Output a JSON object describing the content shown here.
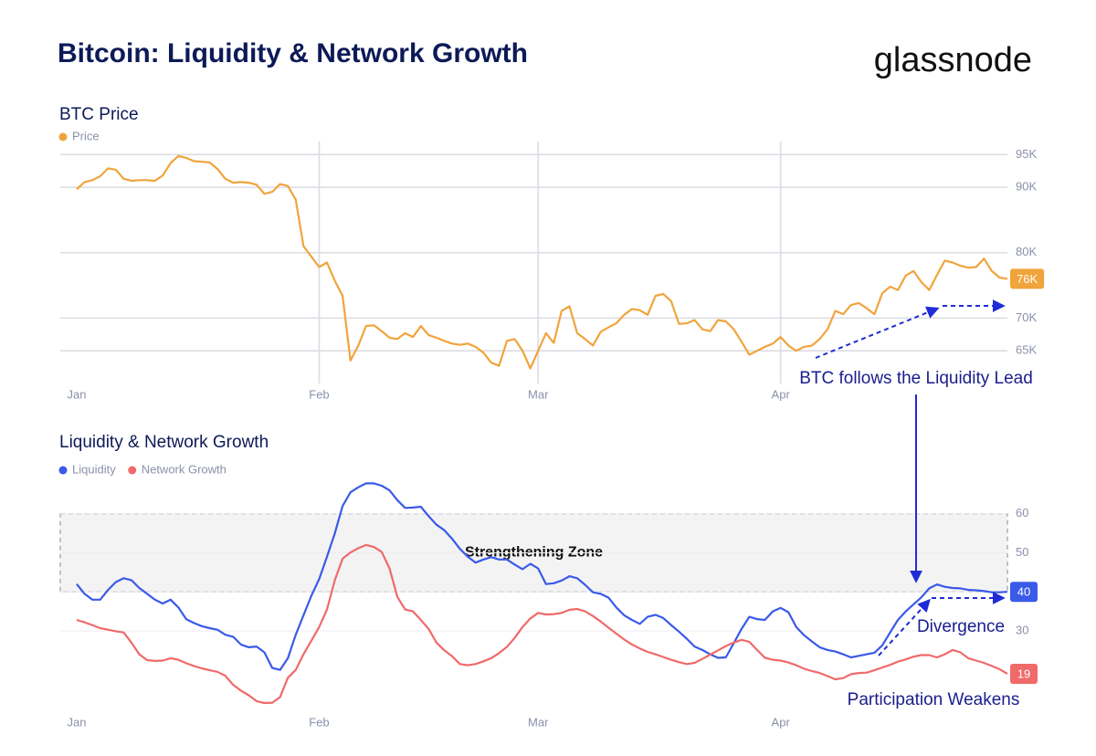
{
  "header": {
    "title": "Bitcoin: Liquidity & Network Growth",
    "brand": "glassnode"
  },
  "chart_data": [
    {
      "type": "line",
      "title": "BTC Price",
      "categories": [
        "Jan",
        null,
        null,
        null,
        null,
        null,
        null,
        null,
        null,
        null,
        null,
        null,
        null,
        null,
        null,
        null,
        null,
        null,
        null,
        null,
        null,
        null,
        null,
        null,
        null,
        null,
        null,
        null,
        null,
        null,
        null,
        "Feb",
        null,
        null,
        null,
        null,
        null,
        null,
        null,
        null,
        null,
        null,
        null,
        null,
        null,
        null,
        null,
        null,
        null,
        null,
        null,
        null,
        null,
        null,
        null,
        null,
        null,
        null,
        null,
        "Mar",
        null,
        null,
        null,
        null,
        null,
        null,
        null,
        null,
        null,
        null,
        null,
        null,
        null,
        null,
        null,
        null,
        null,
        null,
        null,
        null,
        null,
        null,
        null,
        null,
        null,
        null,
        null,
        null,
        null,
        null,
        "Apr",
        null,
        null,
        null,
        null,
        null,
        null,
        null,
        null,
        null,
        null,
        null,
        null,
        null,
        null,
        null,
        null,
        null,
        null,
        null,
        null,
        null,
        null,
        null,
        null,
        null,
        null,
        null,
        null,
        null
      ],
      "series": [
        {
          "name": "Price",
          "color": "#f0a43c",
          "values": [
            89700,
            90800,
            91100,
            91700,
            92900,
            92700,
            91300,
            91000,
            91100,
            91100,
            91000,
            91800,
            93700,
            94800,
            94500,
            94000,
            93900,
            93800,
            92800,
            91300,
            90700,
            90800,
            90700,
            90400,
            89000,
            89300,
            90500,
            90200,
            88100,
            81000,
            79400,
            77800,
            78500,
            75700,
            73400,
            63500,
            65800,
            68800,
            68900,
            68000,
            67000,
            66800,
            67700,
            67100,
            68800,
            67400,
            67000,
            66500,
            66100,
            65900,
            66100,
            65600,
            64700,
            63200,
            62700,
            66500,
            66800,
            65000,
            62300,
            65000,
            67700,
            66200,
            71100,
            71800,
            67700,
            66800,
            65800,
            67900,
            68600,
            69200,
            70500,
            71400,
            71200,
            70500,
            73400,
            73700,
            72600,
            69100,
            69200,
            69700,
            68300,
            68000,
            69700,
            69500,
            68300,
            66400,
            64400,
            65000,
            65600,
            66100,
            67100,
            65800,
            65000,
            65600,
            65800,
            66800,
            68300,
            71100,
            70600,
            72000,
            72300,
            71500,
            70600,
            73800,
            74800,
            74300,
            76500,
            77200,
            75500,
            74300,
            76600,
            78800,
            78500,
            78000,
            77700,
            77800,
            79100,
            77200,
            76200,
            76000
          ],
          "value_labels": [
            null,
            null,
            null,
            null,
            null,
            null,
            null,
            null,
            null,
            null,
            null,
            null,
            null,
            null,
            null,
            null,
            null,
            null,
            null,
            null,
            null,
            null,
            null,
            null,
            null,
            null,
            null,
            null,
            null,
            null,
            null,
            null,
            null,
            null,
            null,
            null,
            null,
            null,
            null,
            null,
            null,
            null,
            null,
            null,
            null,
            null,
            null,
            null,
            null,
            null,
            null,
            null,
            null,
            null,
            null,
            null,
            null,
            null,
            null,
            null,
            null,
            null,
            null,
            null,
            null,
            null,
            null,
            null,
            null,
            null,
            null,
            null,
            null,
            null,
            null,
            null,
            null,
            null,
            null,
            null,
            null,
            null,
            null,
            null,
            null,
            null,
            null,
            null,
            null,
            null,
            null,
            null,
            null,
            null,
            null,
            null,
            null,
            null,
            null,
            null,
            null,
            null,
            null,
            null,
            null,
            null,
            null,
            null,
            null,
            null,
            null,
            null,
            null,
            null,
            null,
            null,
            null,
            null,
            null,
            "76K"
          ]
        }
      ],
      "ylim": [
        60000,
        97000
      ],
      "yticks": [
        {
          "value": 65000,
          "label": "65K"
        },
        {
          "value": 70000,
          "label": "70K"
        },
        {
          "value": 80000,
          "label": "80K"
        },
        {
          "value": 90000,
          "label": "90K"
        },
        {
          "value": 95000,
          "label": "95K"
        }
      ],
      "grid": true,
      "x_grid": true,
      "annotations": [
        "BTC follows the Liquidity Lead"
      ]
    },
    {
      "type": "line",
      "title": "Liquidity & Network Growth",
      "categories": [
        "Jan",
        null,
        null,
        null,
        null,
        null,
        null,
        null,
        null,
        null,
        null,
        null,
        null,
        null,
        null,
        null,
        null,
        null,
        null,
        null,
        null,
        null,
        null,
        null,
        null,
        null,
        null,
        null,
        null,
        null,
        null,
        "Feb",
        null,
        null,
        null,
        null,
        null,
        null,
        null,
        null,
        null,
        null,
        null,
        null,
        null,
        null,
        null,
        null,
        null,
        null,
        null,
        null,
        null,
        null,
        null,
        null,
        null,
        null,
        null,
        "Mar",
        null,
        null,
        null,
        null,
        null,
        null,
        null,
        null,
        null,
        null,
        null,
        null,
        null,
        null,
        null,
        null,
        null,
        null,
        null,
        null,
        null,
        null,
        null,
        null,
        null,
        null,
        null,
        null,
        null,
        null,
        "Apr",
        null,
        null,
        null,
        null,
        null,
        null,
        null,
        null,
        null,
        null,
        null,
        null,
        null,
        null,
        null,
        null,
        null,
        null,
        null,
        null,
        null,
        null,
        null,
        null,
        null,
        null,
        null,
        null,
        null
      ],
      "series": [
        {
          "name": "Liquidity",
          "color": "#3a5ae8",
          "values": [
            42,
            39.5,
            38,
            38,
            40.5,
            42.5,
            43.5,
            43,
            41,
            39.5,
            38,
            37,
            38,
            36,
            33,
            32,
            31.2,
            30.7,
            30.3,
            29,
            28.5,
            26.5,
            25.8,
            26,
            24.5,
            20.5,
            20,
            23,
            29,
            34,
            39,
            43.3,
            49,
            55,
            62,
            65.5,
            66.8,
            67.8,
            67.8,
            67.2,
            66,
            63.5,
            61.5,
            61.6,
            61.8,
            59.4,
            57.2,
            55.8,
            53.6,
            51,
            49,
            47.5,
            48.3,
            48.9,
            48.3,
            48.3,
            47,
            45.8,
            47.2,
            46,
            42,
            42.2,
            42.9,
            44,
            43.5,
            41.8,
            39.9,
            39.5,
            38.5,
            36,
            34,
            32.8,
            31.8,
            33.6,
            34.1,
            33.3,
            31.5,
            29.8,
            28,
            26,
            25.1,
            24,
            23.1,
            23.2,
            26.8,
            30.5,
            33.6,
            33,
            32.8,
            35,
            35.9,
            34.8,
            31,
            28.9,
            27.3,
            25.8,
            25.1,
            24.7,
            24,
            23.2,
            23.6,
            24,
            24.4,
            26.3,
            29.6,
            32.8,
            35,
            36.8,
            38.6,
            40.9,
            41.9,
            41.3,
            41,
            40.9,
            40.5,
            40.4,
            40.2,
            39.9,
            39.9,
            40
          ]
        },
        {
          "name": "Network Growth",
          "color": "#f06a6a",
          "values": [
            32.8,
            32.2,
            31.5,
            30.7,
            30.3,
            29.9,
            29.6,
            27,
            24,
            22.5,
            22.3,
            22.4,
            23,
            22.6,
            21.7,
            21,
            20.4,
            19.9,
            19.5,
            18.5,
            16.2,
            14.7,
            13.5,
            12,
            11.5,
            11.6,
            13,
            18,
            20,
            24,
            27.5,
            31,
            35.5,
            43,
            48.5,
            50.1,
            51.2,
            52,
            51.5,
            50.2,
            46,
            38.7,
            35.5,
            35,
            32.8,
            30.5,
            27,
            25,
            23.5,
            21.5,
            21.2,
            21.5,
            22.2,
            23,
            24.3,
            25.9,
            28.2,
            31,
            33.2,
            34.6,
            34.2,
            34.3,
            34.6,
            35.4,
            35.6,
            35,
            33.8,
            32.4,
            30.8,
            29.3,
            27.8,
            26.5,
            25.5,
            24.6,
            24,
            23.3,
            22.6,
            22,
            21.5,
            21.8,
            22.8,
            23.9,
            25,
            26.1,
            27,
            27.7,
            27.2,
            25.1,
            23.1,
            22.6,
            22.4,
            21.9,
            21.2,
            20.3,
            19.7,
            19.2,
            18.4,
            17.6,
            17.9,
            18.9,
            19.2,
            19.3,
            19.9,
            20.6,
            21.3,
            22.1,
            22.7,
            23.4,
            23.8,
            23.8,
            23.2,
            24,
            25.1,
            24.5,
            23,
            22.4,
            21.8,
            21,
            20.2,
            19
          ]
        }
      ],
      "ylim": [
        8,
        70
      ],
      "yticks": [
        30,
        40,
        50,
        60
      ],
      "grid": true,
      "x_grid": false,
      "zone": {
        "label": "Strengthening Zone",
        "range": [
          40,
          60
        ]
      },
      "annotations": [
        "Divergence",
        "Participation Weakens"
      ]
    }
  ]
}
